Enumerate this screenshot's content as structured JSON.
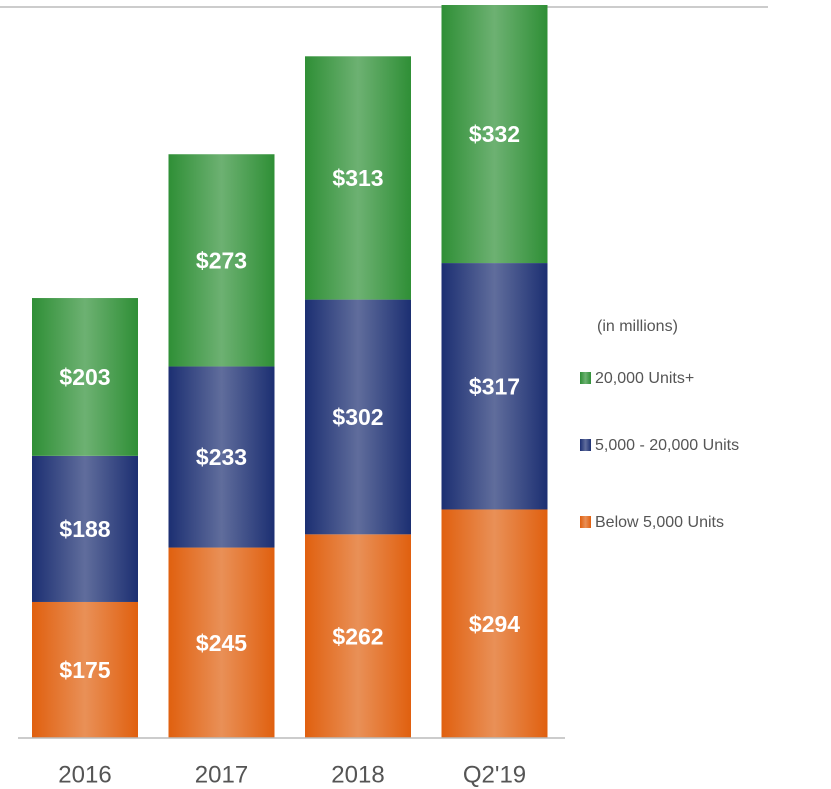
{
  "chart_data": {
    "type": "stacked-bar",
    "categories": [
      "2016",
      "2017",
      "2018",
      "Q2'19"
    ],
    "series": [
      {
        "name": "Below 5,000 Units",
        "color": "#e0600f",
        "values": [
          175,
          245,
          262,
          294
        ],
        "value_labels": [
          "$175",
          "$245",
          "$262",
          "$294"
        ]
      },
      {
        "name": "5,000 - 20,000 Units",
        "color": "#1c2f72",
        "values": [
          188,
          233,
          302,
          317
        ],
        "value_labels": [
          "$188",
          "$233",
          "$302",
          "$317"
        ]
      },
      {
        "name": "20,000 Units+",
        "color": "#2f8f36",
        "values": [
          203,
          273,
          313,
          332
        ],
        "value_labels": [
          "$203",
          "$273",
          "$313",
          "$332"
        ]
      }
    ],
    "annotation": "(in millions)"
  }
}
